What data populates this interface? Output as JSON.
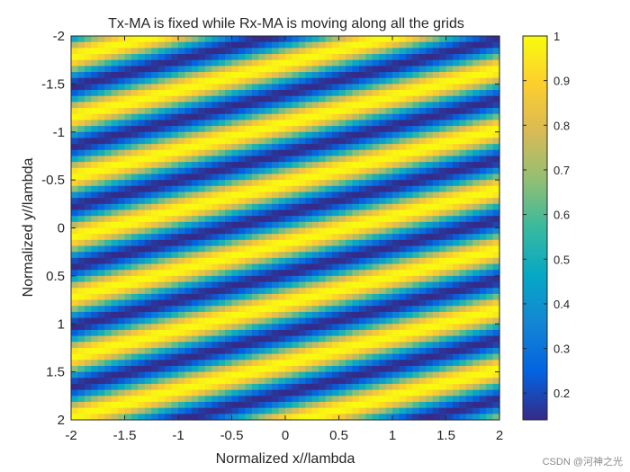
{
  "chart_data": {
    "type": "heatmap",
    "title": "Tx-MA is fixed while Rx-MA is moving along all the grids",
    "xlabel": "Normalized x//lambda",
    "ylabel": "Normalized y//lambda",
    "xlim": [
      -2,
      2
    ],
    "ylim": [
      -2,
      2
    ],
    "y_direction": "reversed",
    "xticks": [
      -2,
      -1.5,
      -1,
      -0.5,
      0,
      0.5,
      1,
      1.5,
      2
    ],
    "xtick_labels": [
      "-2",
      "-1.5",
      "-1",
      "-0.5",
      "0",
      "0.5",
      "1",
      "1.5",
      "2"
    ],
    "yticks": [
      -2,
      -1.5,
      -1,
      -0.5,
      0,
      0.5,
      1,
      1.5,
      2
    ],
    "ytick_labels": [
      "-2",
      "-1.5",
      "-1",
      "-0.5",
      "0",
      "0.5",
      "1",
      "1.5",
      "2"
    ],
    "grid_resolution": 64,
    "colormap": "parula",
    "colorbar": {
      "range": [
        0.14,
        1.0
      ],
      "ticks": [
        0.2,
        0.3,
        0.4,
        0.5,
        0.6,
        0.7,
        0.8,
        0.9,
        1
      ],
      "tick_labels": [
        "0.2",
        "0.3",
        "0.4",
        "0.5",
        "0.6",
        "0.7",
        "0.8",
        "0.9",
        "1"
      ]
    },
    "pattern": {
      "description": "diagonal stripes, value = 0.57 + 0.43*cos(phase)",
      "stripes_per_unit_y": 1.6,
      "slope_dy_per_dx": -0.28,
      "phase_offset_y": 0.16
    }
  },
  "watermark": "CSDN @河神之光"
}
